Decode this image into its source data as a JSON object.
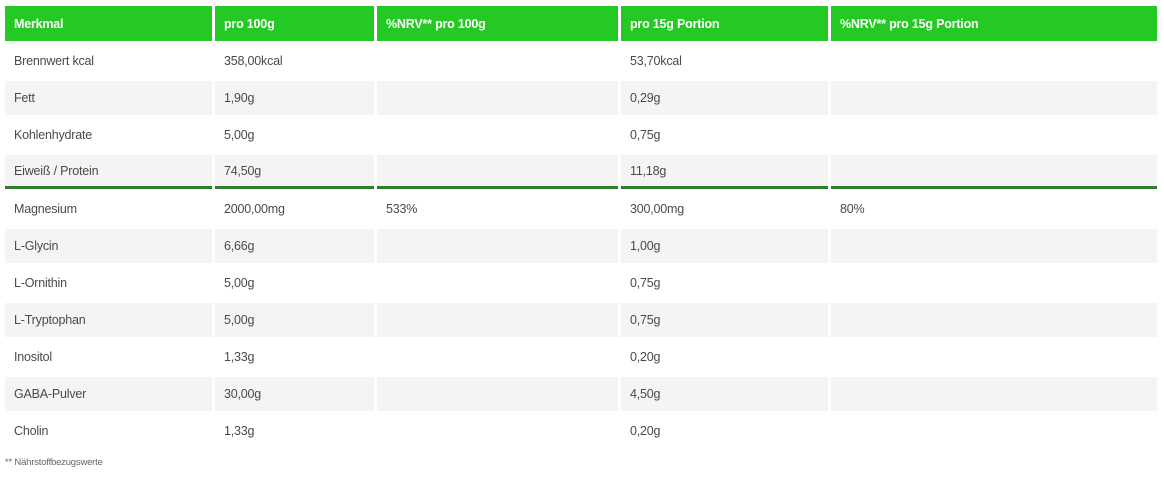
{
  "table": {
    "headers": [
      "Merkmal",
      "pro 100g",
      "%NRV** pro 100g",
      "pro 15g Portion",
      "%NRV** pro 15g Portion"
    ],
    "rows": [
      [
        "Brennwert kcal",
        "358,00kcal",
        "",
        "53,70kcal",
        ""
      ],
      [
        "Fett",
        "1,90g",
        "",
        "0,29g",
        ""
      ],
      [
        "Kohlenhydrate",
        "5,00g",
        "",
        "0,75g",
        ""
      ],
      [
        "Eiweiß / Protein",
        "74,50g",
        "",
        "11,18g",
        ""
      ],
      [
        "Magnesium",
        "2000,00mg",
        "533%",
        "300,00mg",
        "80%"
      ],
      [
        "L-Glycin",
        "6,66g",
        "",
        "1,00g",
        ""
      ],
      [
        "L-Ornithin",
        "5,00g",
        "",
        "0,75g",
        ""
      ],
      [
        "L-Tryptophan",
        "5,00g",
        "",
        "0,75g",
        ""
      ],
      [
        "Inositol",
        "1,33g",
        "",
        "0,20g",
        ""
      ],
      [
        "GABA-Pulver",
        "30,00g",
        "",
        "4,50g",
        ""
      ],
      [
        "Cholin",
        "1,33g",
        "",
        "0,20g",
        ""
      ]
    ]
  },
  "footnote": "** Nährstoffbezugswerte",
  "colors": {
    "header_bg": "#24c924",
    "separator": "#2e7d28",
    "row_alt": "#f4f4f4"
  }
}
